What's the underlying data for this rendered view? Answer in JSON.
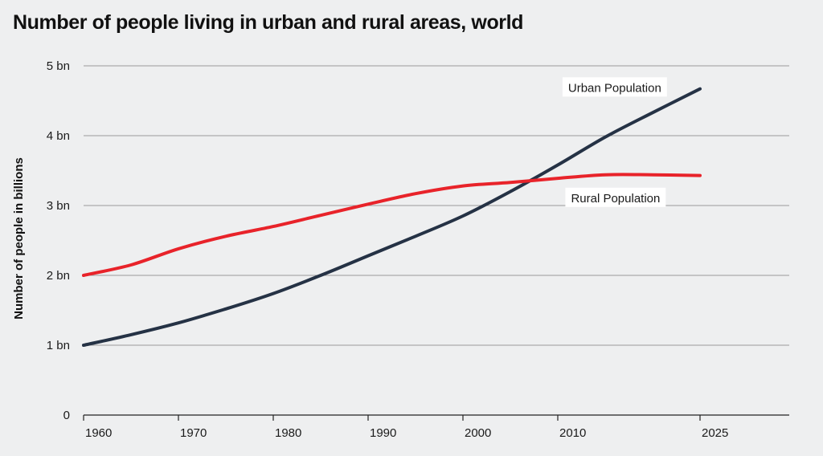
{
  "chart_data": {
    "type": "line",
    "title": "Number of people living in urban and rural areas, world",
    "xlabel": "",
    "ylabel": "Number of people in billions",
    "xlim": [
      1960,
      2025
    ],
    "ylim": [
      0,
      5
    ],
    "x_ticks": [
      1960,
      1970,
      1980,
      1990,
      2000,
      2010,
      2025
    ],
    "y_ticks": [
      {
        "value": 0,
        "label": "0"
      },
      {
        "value": 1,
        "label": "1 bn"
      },
      {
        "value": 2,
        "label": "2 bn"
      },
      {
        "value": 3,
        "label": "3 bn"
      },
      {
        "value": 4,
        "label": "4 bn"
      },
      {
        "value": 5,
        "label": "5 bn"
      }
    ],
    "grid": true,
    "series": [
      {
        "name": "Urban Population",
        "color": "#253245",
        "points": [
          [
            1960,
            1.0
          ],
          [
            1965,
            1.15
          ],
          [
            1970,
            1.32
          ],
          [
            1975,
            1.52
          ],
          [
            1980,
            1.74
          ],
          [
            1985,
            2.0
          ],
          [
            1990,
            2.28
          ],
          [
            1995,
            2.56
          ],
          [
            2000,
            2.85
          ],
          [
            2005,
            3.2
          ],
          [
            2010,
            3.58
          ],
          [
            2015,
            3.98
          ],
          [
            2020,
            4.33
          ],
          [
            2025,
            4.67
          ]
        ]
      },
      {
        "name": "Rural Population",
        "color": "#e8232a",
        "points": [
          [
            1960,
            2.0
          ],
          [
            1965,
            2.15
          ],
          [
            1970,
            2.38
          ],
          [
            1975,
            2.56
          ],
          [
            1980,
            2.7
          ],
          [
            1985,
            2.86
          ],
          [
            1990,
            3.02
          ],
          [
            1995,
            3.17
          ],
          [
            2000,
            3.28
          ],
          [
            2005,
            3.33
          ],
          [
            2010,
            3.39
          ],
          [
            2015,
            3.44
          ],
          [
            2020,
            3.44
          ],
          [
            2025,
            3.43
          ]
        ]
      }
    ],
    "series_labels": [
      {
        "series": "Urban Population",
        "text": "Urban Population",
        "x": 2010.5,
        "y": 4.64
      },
      {
        "series": "Rural Population",
        "text": "Rural Population",
        "x": 2010.8,
        "y": 3.06
      }
    ]
  }
}
